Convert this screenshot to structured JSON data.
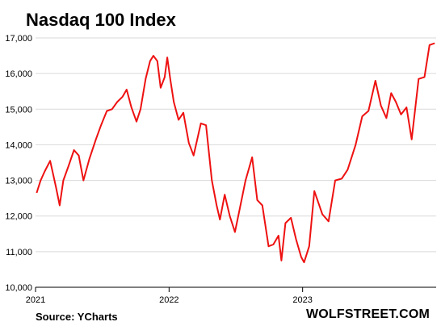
{
  "chart_data": {
    "type": "line",
    "title": "Nasdaq 100 Index",
    "source": "Source: YCharts",
    "brand": "WOLFSTREET.COM",
    "xlabel": "",
    "ylabel": "",
    "ylim": [
      10000,
      17000
    ],
    "xlim": [
      "2021-01-01",
      "2024-01-01"
    ],
    "y_ticks": [
      "10,000",
      "11,000",
      "12,000",
      "13,000",
      "14,000",
      "15,000",
      "16,000",
      "17,000"
    ],
    "x_ticks": [
      "2021",
      "2022",
      "2023"
    ],
    "grid": "horizontal",
    "line_color": "#ee1111",
    "series": [
      {
        "x": [
          "2021-01-04",
          "2021-01-15",
          "2021-01-26",
          "2021-02-10",
          "2021-02-26",
          "2021-03-08",
          "2021-03-18",
          "2021-04-01",
          "2021-04-16",
          "2021-04-29",
          "2021-05-12",
          "2021-05-28",
          "2021-06-15",
          "2021-06-29",
          "2021-07-15",
          "2021-07-29",
          "2021-08-12",
          "2021-08-27",
          "2021-09-07",
          "2021-09-20",
          "2021-10-04",
          "2021-10-15",
          "2021-10-29",
          "2021-11-10",
          "2021-11-19",
          "2021-11-30",
          "2021-12-09",
          "2021-12-20",
          "2021-12-27",
          "2022-01-05",
          "2022-01-14",
          "2022-01-27",
          "2022-02-09",
          "2022-02-24",
          "2022-03-09",
          "2022-03-29",
          "2022-04-12",
          "2022-04-28",
          "2022-05-11",
          "2022-05-20",
          "2022-06-02",
          "2022-06-16",
          "2022-06-30",
          "2022-07-15",
          "2022-07-29",
          "2022-08-16",
          "2022-08-30",
          "2022-09-13",
          "2022-09-30",
          "2022-10-13",
          "2022-10-27",
          "2022-11-04",
          "2022-11-15",
          "2022-11-30",
          "2022-12-14",
          "2022-12-28",
          "2023-01-05",
          "2023-01-19",
          "2023-02-02",
          "2023-02-24",
          "2023-03-13",
          "2023-03-31",
          "2023-04-18",
          "2023-05-04",
          "2023-05-26",
          "2023-06-13",
          "2023-06-30",
          "2023-07-19",
          "2023-08-03",
          "2023-08-18",
          "2023-08-31",
          "2023-09-13",
          "2023-09-27",
          "2023-10-12",
          "2023-10-26",
          "2023-11-14",
          "2023-11-30",
          "2023-12-14",
          "2023-12-28"
        ],
        "values": [
          12650,
          13000,
          13250,
          13550,
          12800,
          12300,
          13000,
          13400,
          13850,
          13700,
          13000,
          13600,
          14150,
          14550,
          14950,
          15000,
          15200,
          15350,
          15550,
          15050,
          14650,
          15000,
          15850,
          16350,
          16500,
          16350,
          15600,
          15900,
          16450,
          15800,
          15200,
          14700,
          14900,
          14050,
          13700,
          14600,
          14550,
          13000,
          12300,
          11900,
          12600,
          12000,
          11550,
          12300,
          13000,
          13650,
          12450,
          12300,
          11150,
          11200,
          11450,
          10750,
          11800,
          11950,
          11350,
          10850,
          10700,
          11150,
          12700,
          12050,
          11850,
          13000,
          13050,
          13300,
          14000,
          14800,
          14950,
          15800,
          15100,
          14750,
          15450,
          15200,
          14850,
          15050,
          14150,
          15850,
          15900,
          16800,
          16850
        ]
      }
    ]
  }
}
